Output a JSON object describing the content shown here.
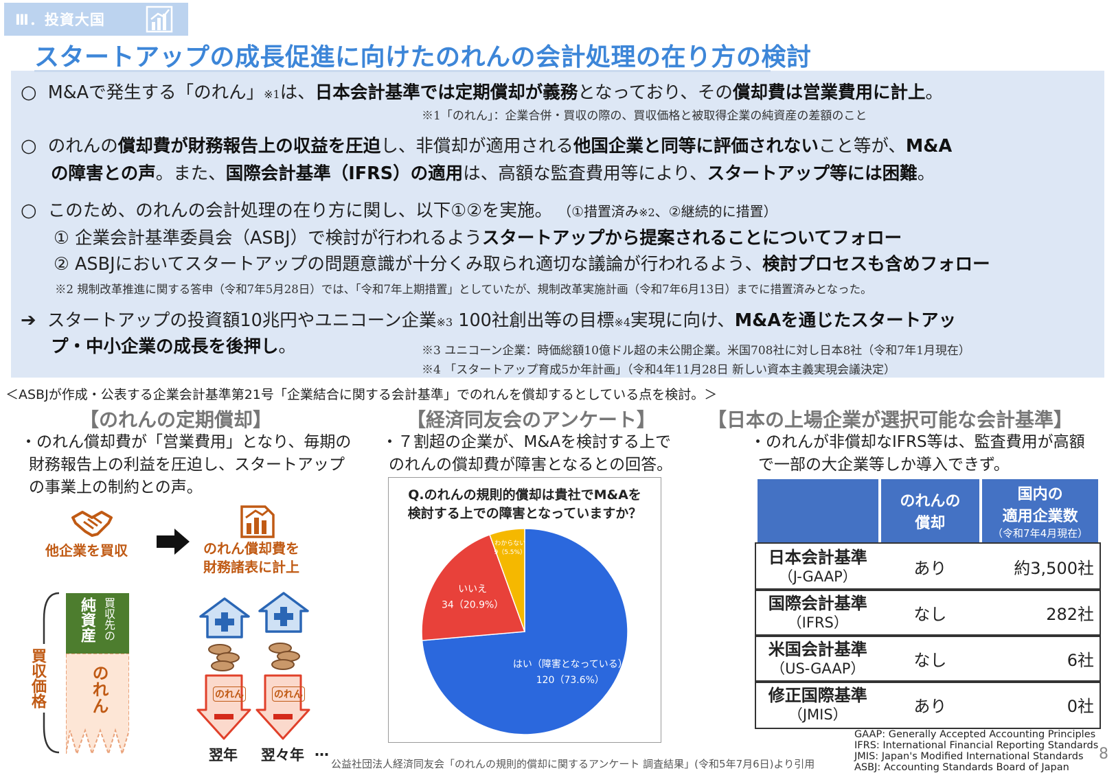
{
  "header": {
    "section_tag": "Ⅲ．投資大国",
    "title": "スタートアップの成長促進に向けたのれんの会計処理の在り方の検討"
  },
  "summary": {
    "bullet_circle": "○",
    "bullet_arrow": "➔",
    "p1": {
      "a": "M&Aで発生する「のれん」",
      "sup": "※1",
      "b": "は、",
      "c": "日本会計基準では定期償却が義務",
      "d": "となっており、その",
      "e": "償却費は営業費用に計上",
      "f": "。"
    },
    "note1": "※1「のれん」：企業合併・買収の際の、買収価格と被取得企業の純資産の差額のこと",
    "p2": {
      "a": "のれんの",
      "b": "償却費が財務報告上の収益を圧迫",
      "c": "し、非償却が適用される",
      "d": "他国企業と同等に評価されない",
      "e": "こと等が、",
      "f": "M&A",
      "g": "の障害との声",
      "h": "。また、",
      "i": "国際会計基準（IFRS）の適用",
      "j": "は、高額な監査費用等により、",
      "k": "スタートアップ等には困難",
      "l": "。"
    },
    "p3": {
      "a": "このため、のれんの会計処理の在り方に関し、以下①②を実施。",
      "b": "（①措置済み",
      "sup": "※2",
      "c": "、②継続的に措置）"
    },
    "item1": {
      "a": "① 企業会計基準委員会（ASBJ）で検討が行われるよう",
      "b": "スタートアップから提案されることについてフォロー"
    },
    "item2": {
      "a": "② ASBJにおいてスタートアップの問題意識が十分くみ取られ適切な議論が行われるよう、",
      "b": "検討プロセスも含めフォロー"
    },
    "note2": "※2  規制改革推進に関する答申（令和7年5月28日）では、「令和7年上期措置」としていたが、規制改革実施計画（令和7年6月13日）までに措置済みとなった。",
    "p4": {
      "a": "スタートアップの投資額10兆円やユニコーン企業",
      "sup3": "※3",
      "b": " 100社創出等の目標",
      "sup4": "※4",
      "c": "実現に向け、",
      "d": "M&Aを通じたスタートアッ",
      "e": "プ・中小企業の成長を後押し",
      "f": "。"
    },
    "note3": "※3 ユニコーン企業：時価総額10億ドル超の未公開企業。米国708社に対し日本8社（令和7年1月現在）",
    "note4": "※4 「スタートアップ育成5か年計画」（令和4年11月28日 新しい資本主義実現会議決定）"
  },
  "mid_note": "＜ASBJが作成・公表する企業会計基準第21号「企業結合に関する会計基準」でのれんを償却するとしている点を検討。＞",
  "left_col": {
    "heading": "【のれんの定期償却】",
    "text": [
      "・のれん償却費が「営業費用」となり、毎期の",
      "財務報告上の利益を圧迫し、スタートアップ",
      "の事業上の制約との声。"
    ],
    "acquire_label": "他企業を買収",
    "expense_label": [
      "のれん償却費を",
      "財務諸表に計上"
    ],
    "vertical_label": "買収価格",
    "net_assets_label": "純資産",
    "net_assets_sub": "買収先の",
    "goodwill_label": "のれん",
    "arrow_label": "のれん",
    "years": [
      "翌年",
      "翌々年",
      "…"
    ]
  },
  "mid_col": {
    "heading": "【経済同友会のアンケート】",
    "text": [
      "・７割超の企業が、M&Aを検討する上で",
      "のれんの償却費が障害となるとの回答。"
    ],
    "question": [
      "Q.のれんの規則的償却は貴社でM&Aを",
      "検討する上での障害となっていますか？"
    ]
  },
  "chart_data": {
    "type": "pie",
    "title": "Q.のれんの規則的償却は貴社でM&Aを検討する上での障害となっていますか？",
    "slices": [
      {
        "label": "はい（障害となっている）",
        "value": 120,
        "percent": 73.6,
        "text": "120（73.6%）",
        "color": "#2b68dd"
      },
      {
        "label": "いいえ",
        "value": 34,
        "percent": 20.9,
        "text": "34（20.9%）",
        "color": "#e8413a"
      },
      {
        "label": "わからない",
        "value": 9,
        "percent": 5.5,
        "text": "9（5.5%）",
        "color": "#f5b800"
      }
    ]
  },
  "right_col": {
    "heading": "【日本の上場企業が選択可能な会計基準】",
    "text": [
      "・のれんが非償却なIFRS等は、監査費用が高額",
      "で一部の大企業等しか導入できず。"
    ],
    "table": {
      "headers": {
        "amort": [
          "のれんの",
          "償却"
        ],
        "count": [
          "国内の",
          "適用企業数"
        ],
        "count_note": "（令和7年4月現在）"
      },
      "rows": [
        {
          "name": "日本会計基準",
          "abbr": "（J-GAAP）",
          "amort": "あり",
          "count": "約3,500社"
        },
        {
          "name": "国際会計基準",
          "abbr": "（IFRS）",
          "amort": "なし",
          "count": "282社"
        },
        {
          "name": "米国会計基準",
          "abbr": "（US-GAAP）",
          "amort": "なし",
          "count": "6社"
        },
        {
          "name": "修正国際基準",
          "abbr": "（JMIS）",
          "amort": "あり",
          "count": "0社"
        }
      ]
    },
    "abbreviations": [
      "GAAP: Generally Accepted Accounting Principles",
      "IFRS: International Financial Reporting Standards",
      "JMIS: Japan's Modified International Standards",
      "ASBJ: Accounting Standards Board of Japan"
    ]
  },
  "footer": {
    "citation": "公益社団法人経済同友会「のれんの規則的償却に関するアンケート 調査結果」(令和5年7月6日)より引用",
    "page_number": "8"
  }
}
